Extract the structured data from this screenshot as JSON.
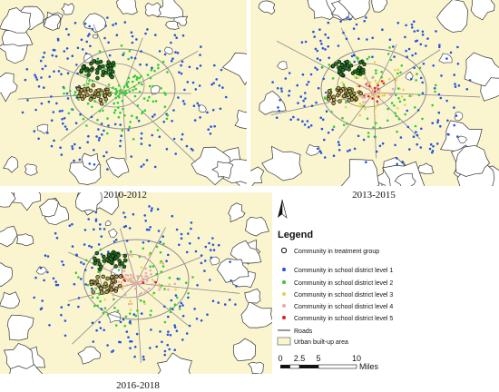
{
  "panels": [
    {
      "caption": "2010-2012"
    },
    {
      "caption": "2013-2015"
    },
    {
      "caption": "2016-2018"
    }
  ],
  "legend": {
    "title": "Legend",
    "items": [
      {
        "label": "Community in treatment group",
        "symbol": "ring"
      },
      {
        "label": "Community in school district level 1",
        "symbol": "dot",
        "color": "#2255dd"
      },
      {
        "label": "Community in school district level 2",
        "symbol": "dot",
        "color": "#33cc33"
      },
      {
        "label": "Community in school district level 3",
        "symbol": "dot",
        "color": "#e8d24a"
      },
      {
        "label": "Community in school district level 4",
        "symbol": "dot",
        "color": "#e8a9b8"
      },
      {
        "label": "Community in school district level 5",
        "symbol": "dot",
        "color": "#e02020"
      },
      {
        "label": "Roads",
        "symbol": "line"
      },
      {
        "label": "Urban built-up area",
        "symbol": "box"
      }
    ]
  },
  "scale_bar": {
    "ticks": [
      "0",
      "2.5",
      "5",
      "10"
    ],
    "unit": "Miles"
  },
  "colors": {
    "urban_fill": "#fbf5cf",
    "outline": "#333333",
    "road": "#8a8a8a",
    "ring": "#111111"
  },
  "icons": {
    "north": "north-arrow-icon"
  }
}
